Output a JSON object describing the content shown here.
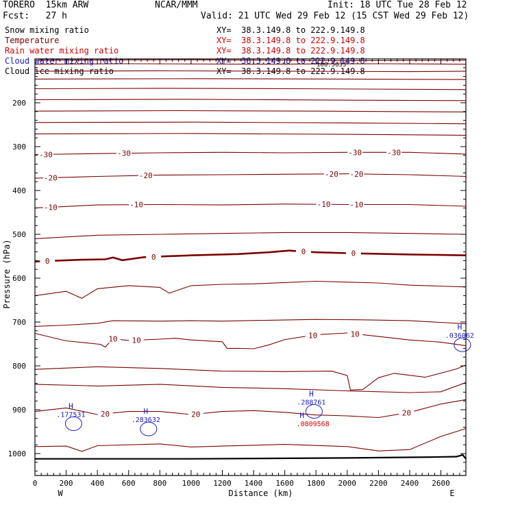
{
  "header": {
    "model": "TORERO  15km ARW",
    "center": "NCAR/MMM",
    "init": "Init: 18 UTC Tue 28 Feb 12",
    "fcst": "Fcst:   27 h",
    "valid": "Valid: 21 UTC Wed 29 Feb 12 (15 CST Wed 29 Feb 12)"
  },
  "colors": {
    "snow": "#000000",
    "temperature": "#7a0000",
    "rain": "#d00000",
    "cloud_water": "#1a1ac8",
    "cloud_ice": "#000000",
    "frame": "#000000"
  },
  "legend": [
    {
      "label": "Snow mixing ratio",
      "xy": "XY=  38.3.149.8 to 222.9.149.8",
      "color_key": "snow",
      "note": ""
    },
    {
      "label": "Temperature",
      "xy": "XY=  38.3.149.8 to 222.9.149.8",
      "color_key": "temperature",
      "note": ""
    },
    {
      "label": "Rain water mixing ratio",
      "xy": "XY=  38.3.149.8 to 222.9.149.8",
      "color_key": "rain",
      "note": ""
    },
    {
      "label": "Cloud water mixing ratio",
      "xy": "XY=  38.3.149.8 to 222.9.149.8",
      "color_key": "cloud_water",
      "note": "100.5633"
    },
    {
      "label": "Cloud ice mixing ratio",
      "xy": "XY=  38.3.149.8 to 222.9.149.8",
      "color_key": "cloud_ice",
      "note": ""
    }
  ],
  "chart_data": {
    "type": "cross-section",
    "xlabel": "Distance (km)",
    "ylabel": "Pressure (hPa)",
    "xlim": [
      0,
      2760
    ],
    "ylim": [
      1050,
      100
    ],
    "x_ticks": [
      0,
      200,
      400,
      600,
      800,
      1000,
      1200,
      1400,
      1600,
      1800,
      2000,
      2200,
      2400,
      2600
    ],
    "y_ticks": [
      200,
      300,
      400,
      500,
      600,
      700,
      800,
      900,
      1000
    ],
    "x_end_labels": {
      "left": "W",
      "right": "E"
    },
    "temperature_contours": [
      {
        "level_label": "",
        "pts": [
          [
            0,
            103
          ],
          [
            1000,
            102
          ],
          [
            2000,
            104
          ],
          [
            2760,
            103
          ]
        ]
      },
      {
        "level_label": "",
        "pts": [
          [
            0,
            112
          ],
          [
            600,
            111
          ],
          [
            1400,
            112
          ],
          [
            2200,
            111
          ],
          [
            2760,
            112
          ]
        ]
      },
      {
        "level_label": "",
        "pts": [
          [
            0,
            128
          ],
          [
            800,
            127
          ],
          [
            1600,
            128
          ],
          [
            2400,
            129
          ],
          [
            2760,
            128
          ]
        ]
      },
      {
        "level_label": "",
        "pts": [
          [
            0,
            146
          ],
          [
            1000,
            145
          ],
          [
            2000,
            146
          ],
          [
            2760,
            147
          ]
        ]
      },
      {
        "level_label": "",
        "pts": [
          [
            0,
            168
          ],
          [
            800,
            167
          ],
          [
            1700,
            168
          ],
          [
            2760,
            170
          ]
        ]
      },
      {
        "level_label": "",
        "pts": [
          [
            0,
            193
          ],
          [
            1000,
            192
          ],
          [
            2000,
            194
          ],
          [
            2760,
            195
          ]
        ]
      },
      {
        "level_label": "",
        "pts": [
          [
            0,
            219
          ],
          [
            900,
            218
          ],
          [
            1800,
            219
          ],
          [
            2760,
            221
          ]
        ]
      },
      {
        "level_label": "",
        "pts": [
          [
            0,
            245
          ],
          [
            1000,
            244
          ],
          [
            2000,
            246
          ],
          [
            2760,
            248
          ]
        ]
      },
      {
        "level_label": "",
        "pts": [
          [
            0,
            271
          ],
          [
            1000,
            270
          ],
          [
            2000,
            272
          ],
          [
            2760,
            274
          ]
        ]
      },
      {
        "level_label": "-30",
        "label_x": [
          70,
          570,
          2050,
          2300
        ],
        "pts": [
          [
            0,
            318
          ],
          [
            400,
            316
          ],
          [
            800,
            314
          ],
          [
            1200,
            313
          ],
          [
            1600,
            314
          ],
          [
            2000,
            313
          ],
          [
            2400,
            313
          ],
          [
            2760,
            317
          ]
        ]
      },
      {
        "level_label": "-20",
        "label_x": [
          100,
          710,
          1900,
          2060
        ],
        "pts": [
          [
            0,
            372
          ],
          [
            400,
            368
          ],
          [
            800,
            365
          ],
          [
            1200,
            364
          ],
          [
            1600,
            363
          ],
          [
            2000,
            362
          ],
          [
            2400,
            364
          ],
          [
            2760,
            368
          ]
        ]
      },
      {
        "level_label": "-10",
        "label_x": [
          100,
          650,
          1850,
          2060
        ],
        "pts": [
          [
            0,
            440
          ],
          [
            400,
            433
          ],
          [
            800,
            432
          ],
          [
            1200,
            433
          ],
          [
            1600,
            431
          ],
          [
            2000,
            432
          ],
          [
            2400,
            432
          ],
          [
            2760,
            436
          ]
        ]
      },
      {
        "level_label": "",
        "pts": [
          [
            0,
            510
          ],
          [
            400,
            502
          ],
          [
            800,
            500
          ],
          [
            1200,
            498
          ],
          [
            1600,
            496
          ],
          [
            2000,
            496
          ],
          [
            2400,
            498
          ],
          [
            2760,
            500
          ]
        ]
      },
      {
        "level_label": "0",
        "bold": true,
        "label_x": [
          80,
          760,
          1720,
          2040
        ],
        "pts": [
          [
            0,
            562
          ],
          [
            300,
            558
          ],
          [
            450,
            557
          ],
          [
            500,
            553
          ],
          [
            560,
            559
          ],
          [
            700,
            552
          ],
          [
            1000,
            548
          ],
          [
            1300,
            545
          ],
          [
            1500,
            541
          ],
          [
            1630,
            537
          ],
          [
            1700,
            539
          ],
          [
            1800,
            541
          ],
          [
            2000,
            543
          ],
          [
            2400,
            546
          ],
          [
            2760,
            548
          ]
        ]
      },
      {
        "level_label": "",
        "pts": [
          [
            0,
            640
          ],
          [
            200,
            630
          ],
          [
            300,
            646
          ],
          [
            400,
            624
          ],
          [
            600,
            617
          ],
          [
            800,
            621
          ],
          [
            860,
            634
          ],
          [
            1000,
            617
          ],
          [
            1200,
            614
          ],
          [
            1400,
            613
          ],
          [
            1600,
            610
          ],
          [
            1800,
            607
          ],
          [
            2000,
            609
          ],
          [
            2200,
            611
          ],
          [
            2400,
            616
          ],
          [
            2760,
            620
          ]
        ]
      },
      {
        "level_label": "",
        "pts": [
          [
            0,
            710
          ],
          [
            200,
            707
          ],
          [
            400,
            703
          ],
          [
            500,
            697
          ],
          [
            800,
            698
          ],
          [
            1000,
            697
          ],
          [
            1200,
            698
          ],
          [
            1500,
            696
          ],
          [
            1800,
            694
          ],
          [
            2100,
            695
          ],
          [
            2400,
            697
          ],
          [
            2760,
            704
          ]
        ]
      },
      {
        "level_label": "10",
        "label_x": [
          500,
          650,
          1780,
          2050
        ],
        "pts": [
          [
            0,
            726
          ],
          [
            200,
            743
          ],
          [
            420,
            751
          ],
          [
            450,
            757
          ],
          [
            500,
            738
          ],
          [
            600,
            742
          ],
          [
            800,
            739
          ],
          [
            900,
            737
          ],
          [
            1000,
            741
          ],
          [
            1200,
            745
          ],
          [
            1230,
            760
          ],
          [
            1300,
            760
          ],
          [
            1400,
            761
          ],
          [
            1500,
            752
          ],
          [
            1600,
            740
          ],
          [
            1800,
            729
          ],
          [
            2000,
            725
          ],
          [
            2200,
            733
          ],
          [
            2400,
            741
          ],
          [
            2600,
            746
          ],
          [
            2760,
            754
          ]
        ]
      },
      {
        "level_label": "",
        "pts": [
          [
            0,
            808
          ],
          [
            400,
            802
          ],
          [
            800,
            806
          ],
          [
            1200,
            812
          ],
          [
            1600,
            813
          ],
          [
            1900,
            812
          ],
          [
            2000,
            822
          ],
          [
            2020,
            855
          ],
          [
            2100,
            854
          ],
          [
            2200,
            827
          ],
          [
            2300,
            817
          ],
          [
            2500,
            826
          ],
          [
            2700,
            807
          ],
          [
            2760,
            798
          ]
        ]
      },
      {
        "level_label": "",
        "pts": [
          [
            0,
            842
          ],
          [
            400,
            846
          ],
          [
            800,
            842
          ],
          [
            1200,
            849
          ],
          [
            1600,
            852
          ],
          [
            2000,
            857
          ],
          [
            2400,
            861
          ],
          [
            2600,
            859
          ],
          [
            2760,
            838
          ]
        ]
      },
      {
        "level_label": "20",
        "label_x": [
          450,
          1030,
          2380
        ],
        "pts": [
          [
            0,
            904
          ],
          [
            200,
            896
          ],
          [
            400,
            911
          ],
          [
            600,
            904
          ],
          [
            800,
            904
          ],
          [
            1000,
            911
          ],
          [
            1200,
            904
          ],
          [
            1400,
            902
          ],
          [
            1600,
            906
          ],
          [
            1800,
            912
          ],
          [
            2000,
            914
          ],
          [
            2200,
            918
          ],
          [
            2400,
            906
          ],
          [
            2600,
            887
          ],
          [
            2760,
            877
          ]
        ]
      },
      {
        "level_label": "",
        "pts": [
          [
            0,
            984
          ],
          [
            200,
            983
          ],
          [
            300,
            995
          ],
          [
            400,
            982
          ],
          [
            800,
            978
          ],
          [
            1000,
            985
          ],
          [
            1200,
            983
          ],
          [
            1600,
            979
          ],
          [
            2000,
            984
          ],
          [
            2200,
            994
          ],
          [
            2400,
            991
          ],
          [
            2600,
            961
          ],
          [
            2760,
            943
          ]
        ]
      }
    ],
    "cloud_water_maxima": [
      {
        "marker": "H",
        "label": ".177531",
        "x": 230,
        "p": 910
      },
      {
        "marker": "H",
        "label": ".283632",
        "x": 710,
        "p": 922
      },
      {
        "marker": "H",
        "label": ".288761",
        "x": 1770,
        "p": 882
      },
      {
        "marker": "H",
        "label": ".036062",
        "x": 2720,
        "p": 730
      }
    ],
    "rain_water_maxima": [
      {
        "marker": "H",
        "label": ".0809568",
        "x": 1780,
        "p": 922
      }
    ],
    "terrain": [
      [
        0,
        1012
      ],
      [
        1000,
        1012
      ],
      [
        2000,
        1010
      ],
      [
        2550,
        1008
      ],
      [
        2700,
        1007
      ],
      [
        2740,
        1003
      ],
      [
        2760,
        1012
      ]
    ]
  }
}
